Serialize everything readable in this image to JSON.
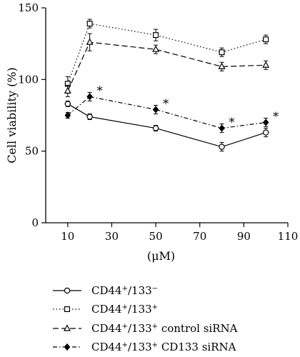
{
  "chart_data": {
    "type": "line",
    "xlabel": "(μM)",
    "ylabel": "Cell viability (%)",
    "xlim": [
      0,
      110
    ],
    "ylim": [
      0,
      150
    ],
    "xticks": [
      "10",
      "30",
      "50",
      "70",
      "90",
      "110"
    ],
    "yticks": [
      "0",
      "50",
      "100",
      "150"
    ],
    "x": [
      10,
      20,
      50,
      80,
      100
    ],
    "grid": false,
    "legend_position": "bottom",
    "series": [
      {
        "name": "CD44+/133−",
        "legend_base": "CD44",
        "legend_sup1": "+",
        "legend_mid": "/133",
        "legend_sup2": "−",
        "legend_tail": "",
        "marker": "open-circle",
        "line_style": "solid",
        "values": [
          83,
          74,
          66,
          53,
          63
        ],
        "errors": [
          2,
          2,
          2,
          3,
          3
        ]
      },
      {
        "name": "CD44+/133+",
        "legend_base": "CD44",
        "legend_sup1": "+",
        "legend_mid": "/133",
        "legend_sup2": "+",
        "legend_tail": "",
        "marker": "open-square",
        "line_style": "dotted",
        "values": [
          97,
          139,
          131,
          119,
          128
        ],
        "errors": [
          5,
          3,
          4,
          3,
          3
        ]
      },
      {
        "name": "CD44+/133+ control siRNA",
        "legend_base": "CD44",
        "legend_sup1": "+",
        "legend_mid": "/133",
        "legend_sup2": "+",
        "legend_tail": " control siRNA",
        "marker": "open-triangle",
        "line_style": "dashed",
        "values": [
          92,
          126,
          121,
          109,
          110
        ],
        "errors": [
          4,
          6,
          3,
          3,
          3
        ]
      },
      {
        "name": "CD44+/133+ CD133 siRNA",
        "legend_base": "CD44",
        "legend_sup1": "+",
        "legend_mid": "/133",
        "legend_sup2": "+",
        "legend_tail": " CD133 siRNA",
        "marker": "filled-diamond",
        "line_style": "dash-dot",
        "values": [
          75,
          88,
          79,
          66,
          70
        ],
        "errors": [
          2,
          3,
          3,
          3,
          3
        ]
      }
    ],
    "annotations": [
      {
        "text": "*",
        "x": 20,
        "y": 88
      },
      {
        "text": "*",
        "x": 50,
        "y": 79
      },
      {
        "text": "*",
        "x": 80,
        "y": 66
      },
      {
        "text": "*",
        "x": 100,
        "y": 70
      }
    ]
  }
}
